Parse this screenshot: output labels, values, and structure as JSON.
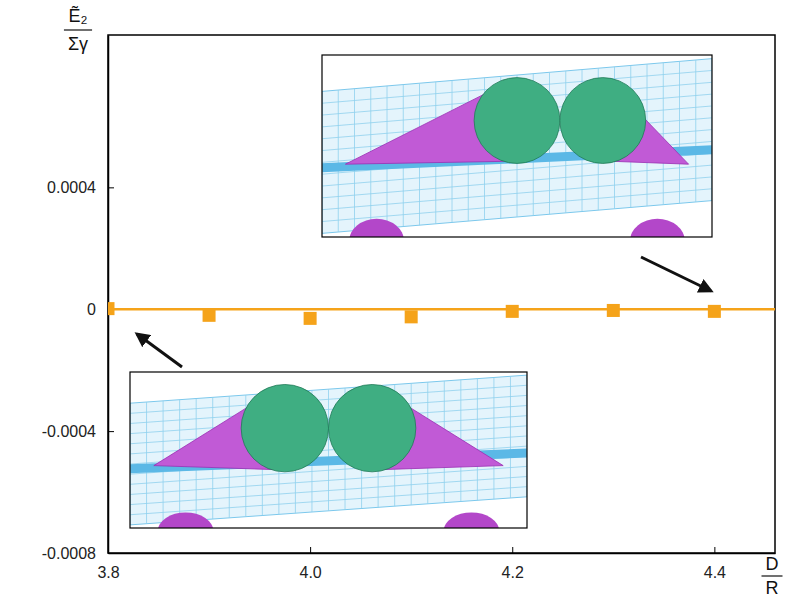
{
  "chart_data": {
    "type": "scatter",
    "xlabel": {
      "numerator": "D",
      "denominator": "R"
    },
    "ylabel": {
      "numerator": "Ẽ₂",
      "denominator": "Σγ"
    },
    "xlim": [
      3.8,
      4.46
    ],
    "ylim": [
      -0.0008,
      0.0009
    ],
    "xticks": [
      3.8,
      {
        "value": 4,
        "label": "4.0"
      },
      4.2,
      4.4
    ],
    "yticks": [
      -0.0008,
      -0.0004,
      0,
      0.0004
    ],
    "grid": false,
    "series": [
      {
        "type": "scatter",
        "marker": "square",
        "color": "#f5a31a",
        "x": [
          3.8,
          3.9,
          4.0,
          4.1,
          4.2,
          4.3,
          4.4
        ],
        "values": [
          2e-06,
          -2e-05,
          -3e-05,
          -2.5e-05,
          -7e-06,
          -4e-06,
          -7e-06
        ]
      },
      {
        "type": "line",
        "line_style": "solid",
        "color": "#f5a31a",
        "x": [
          3.8,
          4.46
        ],
        "values": [
          0,
          0
        ]
      }
    ]
  }
}
